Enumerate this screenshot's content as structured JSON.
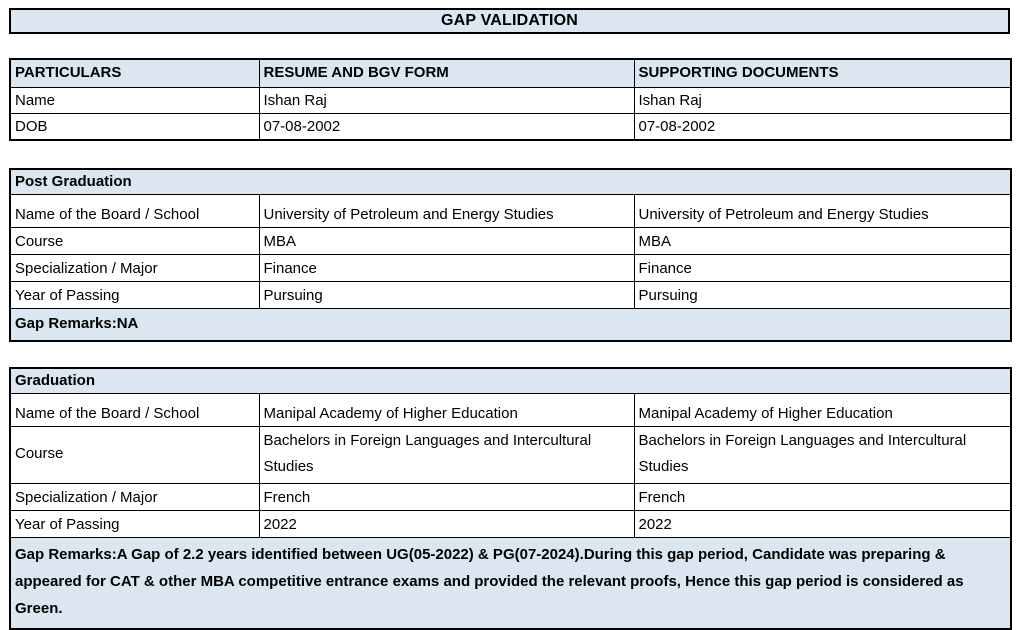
{
  "title": "GAP VALIDATION",
  "colors": {
    "header_bg": "#dce6f1",
    "border": "#000000",
    "text": "#000000",
    "cell_bg": "#ffffff"
  },
  "identity_table": {
    "headers": [
      "PARTICULARS",
      "RESUME AND BGV FORM",
      "SUPPORTING DOCUMENTS"
    ],
    "rows": [
      {
        "label": "Name",
        "resume": "Ishan Raj",
        "supporting": "Ishan Raj"
      },
      {
        "label": "DOB",
        "resume": "07-08-2002",
        "supporting": "07-08-2002"
      }
    ]
  },
  "sections": [
    {
      "name": "Post Graduation",
      "rows": [
        {
          "label": "Name of the Board / School",
          "resume": "University of Petroleum and Energy Studies",
          "supporting": "University of Petroleum and Energy Studies"
        },
        {
          "label": "Course",
          "resume": "MBA",
          "supporting": "MBA"
        },
        {
          "label": "Specialization / Major",
          "resume": "Finance",
          "supporting": "Finance"
        },
        {
          "label": "Year of Passing",
          "resume": "Pursuing",
          "supporting": "Pursuing"
        }
      ],
      "gap_remarks": "Gap Remarks:NA"
    },
    {
      "name": "Graduation",
      "rows": [
        {
          "label": "Name of the Board / School",
          "resume": "Manipal Academy of Higher Education",
          "supporting": "Manipal Academy of Higher Education"
        },
        {
          "label": "Course",
          "resume": "Bachelors in Foreign Languages and Intercultural Studies",
          "supporting": "Bachelors in Foreign Languages and Intercultural Studies"
        },
        {
          "label": "Specialization / Major",
          "resume": "French",
          "supporting": "French"
        },
        {
          "label": "Year of Passing",
          "resume": "2022",
          "supporting": "2022"
        }
      ],
      "gap_remarks": "Gap Remarks:A Gap of 2.2 years identified between UG(05-2022) & PG(07-2024).During this gap period, Candidate was preparing & appeared for CAT & other MBA competitive entrance exams and provided the relevant proofs, Hence this gap period is considered as Green."
    }
  ]
}
